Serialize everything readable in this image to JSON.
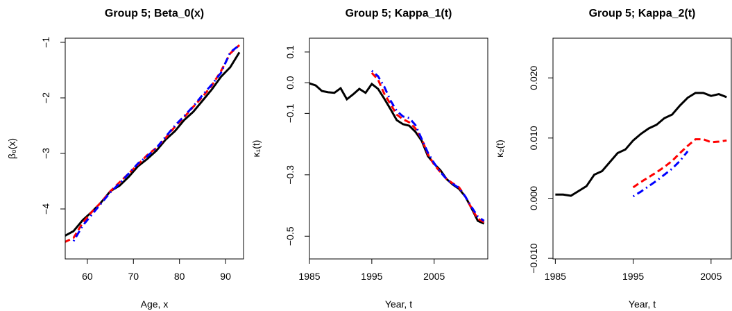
{
  "chart_data": [
    {
      "type": "line",
      "title": "Group 5; Beta_0(x)",
      "x_label": "Age, x",
      "y_label": "β₀(x)",
      "x": [
        55,
        57,
        59,
        61,
        63,
        65,
        67,
        69,
        71,
        73,
        75,
        77,
        79,
        81,
        83,
        85,
        87,
        89,
        91,
        93
      ],
      "series": [
        {
          "color": "#000000",
          "style": "solid",
          "values": [
            -4.49,
            -4.4,
            -4.2,
            -4.05,
            -3.88,
            -3.68,
            -3.58,
            -3.42,
            -3.23,
            -3.1,
            -2.95,
            -2.75,
            -2.6,
            -2.4,
            -2.25,
            -2.05,
            -1.85,
            -1.62,
            -1.45,
            -1.18
          ]
        },
        {
          "color": "#ff0000",
          "style": "dashed",
          "values": [
            -4.6,
            -4.52,
            -4.25,
            -4.05,
            -3.88,
            -3.68,
            -3.52,
            -3.36,
            -3.2,
            -3.03,
            -2.9,
            -2.72,
            -2.52,
            -2.35,
            -2.16,
            -1.98,
            -1.78,
            -1.52,
            -1.2,
            -1.05
          ]
        },
        {
          "color": "#0000ff",
          "style": "dotdash",
          "values": [
            null,
            -4.58,
            -4.3,
            -4.1,
            -3.9,
            -3.7,
            -3.54,
            -3.36,
            -3.18,
            -3.05,
            -2.9,
            -2.7,
            -2.5,
            -2.33,
            -2.15,
            -1.95,
            -1.76,
            -1.55,
            -1.18,
            -1.05
          ]
        }
      ],
      "xlim": [
        55.2,
        93.9
      ],
      "xticks": [
        60,
        70,
        80,
        90
      ],
      "ylim": [
        -4.9,
        -0.925
      ],
      "yticks": [
        {
          "value": -4,
          "label": "−4"
        },
        {
          "value": -3,
          "label": "−3"
        },
        {
          "value": -2,
          "label": "−2"
        },
        {
          "value": -1,
          "label": "−1"
        }
      ]
    },
    {
      "type": "line",
      "title": "Group 5; Kappa_1(t)",
      "x_label": "Year, t",
      "y_label": "κ₁(t)",
      "x": [
        1985,
        1986,
        1987,
        1988,
        1989,
        1990,
        1991,
        1992,
        1993,
        1994,
        1995,
        1996,
        1997,
        1998,
        1999,
        2000,
        2001,
        2002,
        2003,
        2004,
        2005,
        2006,
        2007,
        2008,
        2009,
        2010,
        2011,
        2012,
        2013
      ],
      "series": [
        {
          "color": "#000000",
          "style": "solid",
          "values": [
            -0.002,
            -0.009,
            -0.027,
            -0.031,
            -0.033,
            -0.018,
            -0.054,
            -0.038,
            -0.02,
            -0.033,
            -0.004,
            -0.02,
            -0.052,
            -0.086,
            -0.122,
            -0.135,
            -0.14,
            -0.16,
            -0.189,
            -0.239,
            -0.264,
            -0.285,
            -0.314,
            -0.332,
            -0.346,
            -0.371,
            -0.409,
            -0.45,
            -0.459
          ]
        },
        {
          "color": "#ff0000",
          "style": "dashed",
          "values": [
            null,
            null,
            null,
            null,
            null,
            null,
            null,
            null,
            null,
            null,
            0.032,
            0.01,
            -0.036,
            -0.07,
            -0.104,
            -0.119,
            -0.129,
            -0.149,
            -0.183,
            -0.233,
            -0.267,
            -0.291,
            -0.314,
            -0.328,
            -0.341,
            -0.371,
            -0.409,
            -0.443,
            -0.454
          ]
        },
        {
          "color": "#0000ff",
          "style": "dotdash",
          "values": [
            null,
            null,
            null,
            null,
            null,
            null,
            null,
            null,
            null,
            null,
            0.039,
            0.021,
            -0.013,
            -0.058,
            -0.092,
            -0.11,
            -0.115,
            -0.138,
            -0.183,
            -0.228,
            -0.262,
            -0.291,
            -0.314,
            -0.33,
            -0.343,
            -0.371,
            -0.405,
            -0.436,
            -0.45
          ]
        }
      ],
      "xlim": [
        1985,
        2013.6
      ],
      "xticks": [
        1985,
        1995,
        2005
      ],
      "ylim": [
        -0.574,
        0.145
      ],
      "yticks": [
        {
          "value": -0.5,
          "label": "−0.5"
        },
        {
          "value": -0.3,
          "label": "−0.3"
        },
        {
          "value": -0.1,
          "label": "−0.1"
        },
        {
          "value": 0,
          "label": "0.0"
        },
        0.1
      ]
    },
    {
      "type": "line",
      "title": "Group 5; Kappa_2(t)",
      "x_label": "Year, t",
      "y_label": "κ₂(t)",
      "x": [
        1985,
        1986,
        1987,
        1988,
        1989,
        1990,
        1991,
        1992,
        1993,
        1994,
        1995,
        1996,
        1997,
        1998,
        1999,
        2000,
        2001,
        2002,
        2003,
        2004,
        2005,
        2006,
        2007
      ],
      "series": [
        {
          "color": "#000000",
          "style": "solid",
          "values": [
            0.0006,
            0.0006,
            0.0004,
            0.0012,
            0.002,
            0.0039,
            0.0045,
            0.006,
            0.0075,
            0.0081,
            0.0096,
            0.0107,
            0.0116,
            0.0122,
            0.0133,
            0.0139,
            0.0154,
            0.0167,
            0.0175,
            0.0175,
            0.017,
            0.0173,
            0.0168
          ]
        },
        {
          "color": "#ff0000",
          "style": "dashed",
          "values": [
            null,
            null,
            null,
            null,
            null,
            null,
            null,
            null,
            null,
            null,
            0.0018,
            0.0027,
            0.0035,
            0.0043,
            0.0052,
            0.0062,
            0.0075,
            0.0087,
            0.0098,
            0.0098,
            0.0093,
            0.0094,
            0.0096
          ]
        },
        {
          "color": "#0000ff",
          "style": "dotdash",
          "values": [
            null,
            null,
            null,
            null,
            null,
            null,
            null,
            null,
            null,
            null,
            0.0003,
            0.0011,
            0.002,
            0.0029,
            0.0039,
            0.0049,
            0.0062,
            0.0078,
            null,
            null,
            null,
            null,
            null
          ]
        }
      ],
      "xlim": [
        1984.7,
        2007.6
      ],
      "xticks": [
        1985,
        1995,
        2005
      ],
      "ylim": [
        -0.0101,
        0.0266
      ],
      "yticks": [
        {
          "value": -0.01,
          "label": "−0.010"
        },
        {
          "value": 0,
          "label": "0.000"
        },
        {
          "value": 0.01,
          "label": "0.010"
        },
        {
          "value": 0.02,
          "label": "0.020"
        }
      ]
    }
  ]
}
